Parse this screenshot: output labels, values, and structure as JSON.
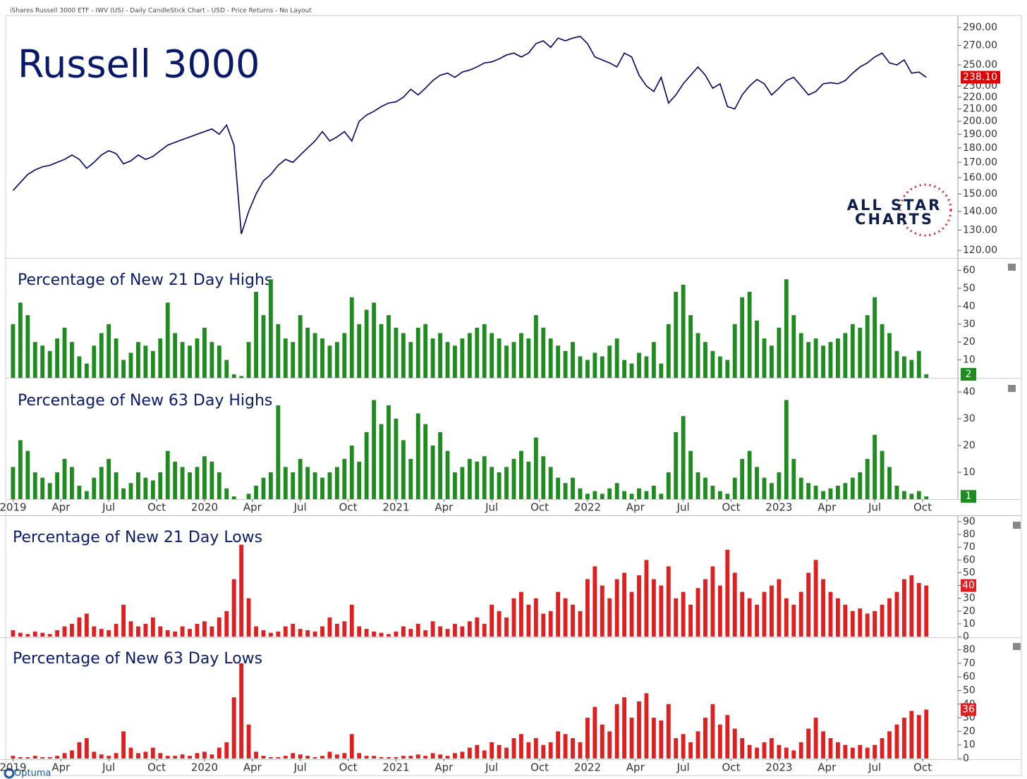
{
  "header": "iShares Russell 3000 ETF - IWV (US) - Daily CandleStick Chart - USD - Price Returns - No Layout",
  "logo": {
    "line1": "ALL STAR",
    "line2": "CHARTS"
  },
  "footer": "Optuma",
  "chart_data": [
    {
      "type": "line",
      "title": "Russell 3000",
      "color": "#000066",
      "log_scale": true,
      "xlim": [
        -1,
        128
      ],
      "ylim": [
        116.4,
        304
      ],
      "yticks": [
        {
          "value": 120,
          "label": "120.00"
        },
        {
          "value": 130,
          "label": "130.00"
        },
        {
          "value": 140,
          "label": "140.00"
        },
        {
          "value": 150,
          "label": "150.00"
        },
        {
          "value": 160,
          "label": "160.00"
        },
        {
          "value": 170,
          "label": "170.00"
        },
        {
          "value": 180,
          "label": "180.00"
        },
        {
          "value": 190,
          "label": "190.00"
        },
        {
          "value": 200,
          "label": "200.00"
        },
        {
          "value": 210,
          "label": "210.00"
        },
        {
          "value": 220,
          "label": "220.00"
        },
        {
          "value": 230,
          "label": "230.00"
        },
        {
          "value": 250,
          "label": "250.00"
        },
        {
          "value": 270,
          "label": "270.00"
        },
        {
          "value": 290,
          "label": "290.00"
        }
      ],
      "last_value_label": "238.10",
      "badge_color": "#e00000",
      "values": [
        152,
        157,
        162,
        165,
        167,
        168,
        170,
        172,
        175,
        172,
        166,
        170,
        175,
        178,
        176,
        169,
        171,
        175,
        172,
        174,
        178,
        182,
        184,
        186,
        188,
        190,
        192,
        194,
        190,
        197,
        182,
        128,
        140,
        150,
        158,
        162,
        168,
        172,
        170,
        175,
        180,
        185,
        192,
        185,
        188,
        192,
        185,
        200,
        205,
        208,
        212,
        215,
        216,
        220,
        227,
        222,
        228,
        235,
        240,
        242,
        238,
        243,
        245,
        248,
        252,
        253,
        256,
        260,
        262,
        258,
        262,
        272,
        275,
        268,
        278,
        275,
        278,
        280,
        272,
        258,
        255,
        252,
        248,
        262,
        258,
        240,
        230,
        225,
        238,
        215,
        222,
        232,
        240,
        248,
        240,
        228,
        232,
        212,
        210,
        222,
        230,
        236,
        232,
        222,
        228,
        235,
        238,
        230,
        222,
        225,
        232,
        233,
        232,
        235,
        242,
        248,
        252,
        258,
        262,
        252,
        250,
        255,
        242,
        243,
        238.1
      ]
    },
    {
      "type": "bar",
      "title": "Percentage of New 21 Day Highs",
      "color": "#1e8c1e",
      "xlim": [
        -1,
        128
      ],
      "ylim": [
        0,
        66.5
      ],
      "yticks": [
        10,
        20,
        30,
        40,
        50,
        60
      ],
      "values": [
        30,
        42,
        35,
        20,
        18,
        15,
        22,
        28,
        20,
        12,
        8,
        18,
        25,
        30,
        22,
        10,
        14,
        20,
        18,
        15,
        22,
        42,
        25,
        20,
        18,
        22,
        28,
        20,
        18,
        10,
        2,
        1,
        20,
        48,
        35,
        55,
        30,
        22,
        20,
        35,
        28,
        25,
        22,
        18,
        20,
        25,
        45,
        30,
        38,
        42,
        30,
        35,
        28,
        25,
        20,
        28,
        30,
        22,
        25,
        20,
        18,
        22,
        25,
        28,
        30,
        25,
        22,
        18,
        20,
        25,
        22,
        35,
        28,
        22,
        18,
        15,
        20,
        12,
        10,
        14,
        12,
        18,
        22,
        10,
        8,
        14,
        12,
        20,
        8,
        30,
        48,
        52,
        35,
        25,
        20,
        15,
        12,
        10,
        30,
        45,
        48,
        32,
        22,
        18,
        28,
        55,
        35,
        25,
        20,
        22,
        18,
        20,
        22,
        25,
        30,
        28,
        35,
        45,
        30,
        25,
        15,
        12,
        10,
        15,
        2
      ]
    },
    {
      "type": "bar",
      "title": "Percentage of New 63 Day Highs",
      "color": "#1e8c1e",
      "xlim": [
        -1,
        128
      ],
      "ylim": [
        0,
        45
      ],
      "yticks": [
        10,
        20,
        30,
        40
      ],
      "xticks": [
        {
          "value": 0,
          "label": "2019"
        },
        {
          "value": 6.5,
          "label": "Apr"
        },
        {
          "value": 13,
          "label": "Jul"
        },
        {
          "value": 19.5,
          "label": "Oct"
        },
        {
          "value": 26,
          "label": "2020"
        },
        {
          "value": 32.5,
          "label": "Apr"
        },
        {
          "value": 39,
          "label": "Jul"
        },
        {
          "value": 45.5,
          "label": "Oct"
        },
        {
          "value": 52,
          "label": "2021"
        },
        {
          "value": 58.5,
          "label": "Apr"
        },
        {
          "value": 65,
          "label": "Jul"
        },
        {
          "value": 71.5,
          "label": "Oct"
        },
        {
          "value": 78,
          "label": "2022"
        },
        {
          "value": 84.5,
          "label": "Apr"
        },
        {
          "value": 91,
          "label": "Jul"
        },
        {
          "value": 97.5,
          "label": "Oct"
        },
        {
          "value": 104,
          "label": "2023"
        },
        {
          "value": 110.5,
          "label": "Apr"
        },
        {
          "value": 117,
          "label": "Jul"
        },
        {
          "value": 123.5,
          "label": "Oct"
        }
      ],
      "values": [
        12,
        22,
        18,
        10,
        8,
        6,
        10,
        15,
        12,
        5,
        3,
        8,
        12,
        15,
        10,
        4,
        6,
        10,
        8,
        7,
        10,
        18,
        14,
        12,
        10,
        12,
        16,
        14,
        10,
        4,
        1,
        0,
        2,
        5,
        8,
        10,
        35,
        12,
        10,
        15,
        12,
        10,
        8,
        10,
        12,
        15,
        20,
        14,
        25,
        37,
        28,
        35,
        30,
        22,
        15,
        32,
        28,
        20,
        25,
        18,
        10,
        12,
        15,
        14,
        16,
        12,
        10,
        12,
        15,
        18,
        14,
        23,
        16,
        12,
        8,
        6,
        8,
        4,
        2,
        3,
        2,
        4,
        6,
        3,
        2,
        4,
        3,
        5,
        2,
        10,
        25,
        31,
        18,
        10,
        8,
        5,
        3,
        2,
        8,
        15,
        18,
        12,
        8,
        6,
        10,
        37,
        15,
        8,
        6,
        5,
        3,
        4,
        5,
        6,
        8,
        10,
        15,
        24,
        18,
        12,
        5,
        3,
        2,
        3,
        1
      ]
    },
    {
      "type": "bar",
      "title": "Percentage of New 21 Day Lows",
      "color": "#e02020",
      "xlim": [
        -1,
        128
      ],
      "ylim": [
        0,
        94.4
      ],
      "yticks": [
        0,
        10,
        20,
        30,
        40,
        50,
        60,
        70,
        80,
        90
      ],
      "values": [
        5,
        3,
        2,
        4,
        3,
        2,
        5,
        8,
        10,
        15,
        18,
        8,
        6,
        5,
        10,
        25,
        12,
        8,
        10,
        15,
        8,
        5,
        4,
        8,
        6,
        10,
        12,
        8,
        15,
        20,
        45,
        72,
        30,
        8,
        5,
        3,
        4,
        8,
        10,
        6,
        5,
        4,
        8,
        15,
        10,
        12,
        25,
        8,
        6,
        4,
        3,
        2,
        4,
        8,
        6,
        10,
        5,
        12,
        8,
        6,
        10,
        8,
        12,
        15,
        10,
        25,
        20,
        15,
        30,
        35,
        25,
        30,
        18,
        20,
        35,
        30,
        25,
        20,
        45,
        55,
        40,
        30,
        45,
        50,
        35,
        48,
        60,
        45,
        40,
        55,
        30,
        35,
        25,
        38,
        45,
        55,
        40,
        68,
        50,
        35,
        30,
        25,
        35,
        40,
        45,
        30,
        25,
        35,
        50,
        60,
        45,
        35,
        30,
        25,
        20,
        22,
        18,
        20,
        25,
        30,
        35,
        45,
        48,
        42,
        40
      ]
    },
    {
      "type": "bar",
      "title": "Percentage of New 63 Day Lows",
      "color": "#e02020",
      "xlim": [
        -1,
        128
      ],
      "ylim": [
        0,
        88.6
      ],
      "yticks": [
        0,
        10,
        20,
        30,
        40,
        50,
        60,
        70,
        80
      ],
      "xticks": [
        {
          "value": 0,
          "label": "2019"
        },
        {
          "value": 6.5,
          "label": "Apr"
        },
        {
          "value": 13,
          "label": "Jul"
        },
        {
          "value": 19.5,
          "label": "Oct"
        },
        {
          "value": 26,
          "label": "2020"
        },
        {
          "value": 32.5,
          "label": "Apr"
        },
        {
          "value": 39,
          "label": "Jul"
        },
        {
          "value": 45.5,
          "label": "Oct"
        },
        {
          "value": 52,
          "label": "2021"
        },
        {
          "value": 58.5,
          "label": "Apr"
        },
        {
          "value": 65,
          "label": "Jul"
        },
        {
          "value": 71.5,
          "label": "Oct"
        },
        {
          "value": 78,
          "label": "2022"
        },
        {
          "value": 84.5,
          "label": "Apr"
        },
        {
          "value": 91,
          "label": "Jul"
        },
        {
          "value": 97.5,
          "label": "Oct"
        },
        {
          "value": 104,
          "label": "2023"
        },
        {
          "value": 110.5,
          "label": "Apr"
        },
        {
          "value": 117,
          "label": "Jul"
        },
        {
          "value": 123.5,
          "label": "Oct"
        }
      ],
      "values": [
        2,
        1,
        1,
        2,
        1,
        1,
        2,
        4,
        6,
        12,
        15,
        5,
        3,
        2,
        4,
        20,
        8,
        4,
        5,
        8,
        4,
        2,
        2,
        3,
        2,
        4,
        5,
        3,
        8,
        12,
        45,
        70,
        25,
        5,
        2,
        1,
        1,
        2,
        4,
        3,
        2,
        1,
        2,
        5,
        3,
        4,
        18,
        4,
        2,
        2,
        1,
        1,
        1,
        2,
        2,
        3,
        2,
        4,
        3,
        2,
        4,
        5,
        8,
        10,
        6,
        12,
        10,
        8,
        15,
        18,
        12,
        15,
        10,
        12,
        20,
        18,
        15,
        12,
        30,
        38,
        25,
        20,
        40,
        45,
        30,
        42,
        48,
        30,
        28,
        40,
        15,
        18,
        12,
        20,
        30,
        40,
        25,
        32,
        22,
        15,
        10,
        8,
        12,
        15,
        10,
        8,
        6,
        12,
        22,
        30,
        20,
        15,
        12,
        10,
        8,
        10,
        8,
        10,
        15,
        20,
        25,
        30,
        35,
        32,
        36
      ]
    }
  ]
}
